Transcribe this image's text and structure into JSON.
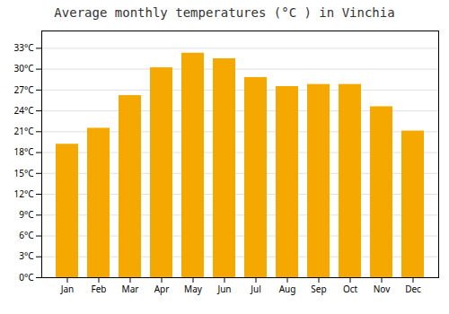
{
  "chart_data": {
    "type": "bar",
    "title": "Average monthly temperatures (°C ) in Vinchia",
    "categories": [
      "Jan",
      "Feb",
      "Mar",
      "Apr",
      "May",
      "Jun",
      "Jul",
      "Aug",
      "Sep",
      "Oct",
      "Nov",
      "Dec"
    ],
    "values": [
      19.2,
      21.5,
      26.2,
      30.2,
      32.3,
      31.5,
      28.8,
      27.5,
      27.8,
      27.8,
      24.6,
      21.1
    ],
    "color": "#F5A800",
    "ylim": [
      0,
      35.5
    ],
    "yticks": [
      {
        "value": 0,
        "label": "0°C"
      },
      {
        "value": 3,
        "label": "3°C"
      },
      {
        "value": 6,
        "label": "6°C"
      },
      {
        "value": 9,
        "label": "9°C"
      },
      {
        "value": 12,
        "label": "12°C"
      },
      {
        "value": 15,
        "label": "15°C"
      },
      {
        "value": 18,
        "label": "18°C"
      },
      {
        "value": 21,
        "label": "21°C"
      },
      {
        "value": 24,
        "label": "24°C"
      },
      {
        "value": 27,
        "label": "27°C"
      },
      {
        "value": 30,
        "label": "30°C"
      },
      {
        "value": 33,
        "label": "33°C"
      }
    ],
    "grid": true
  }
}
